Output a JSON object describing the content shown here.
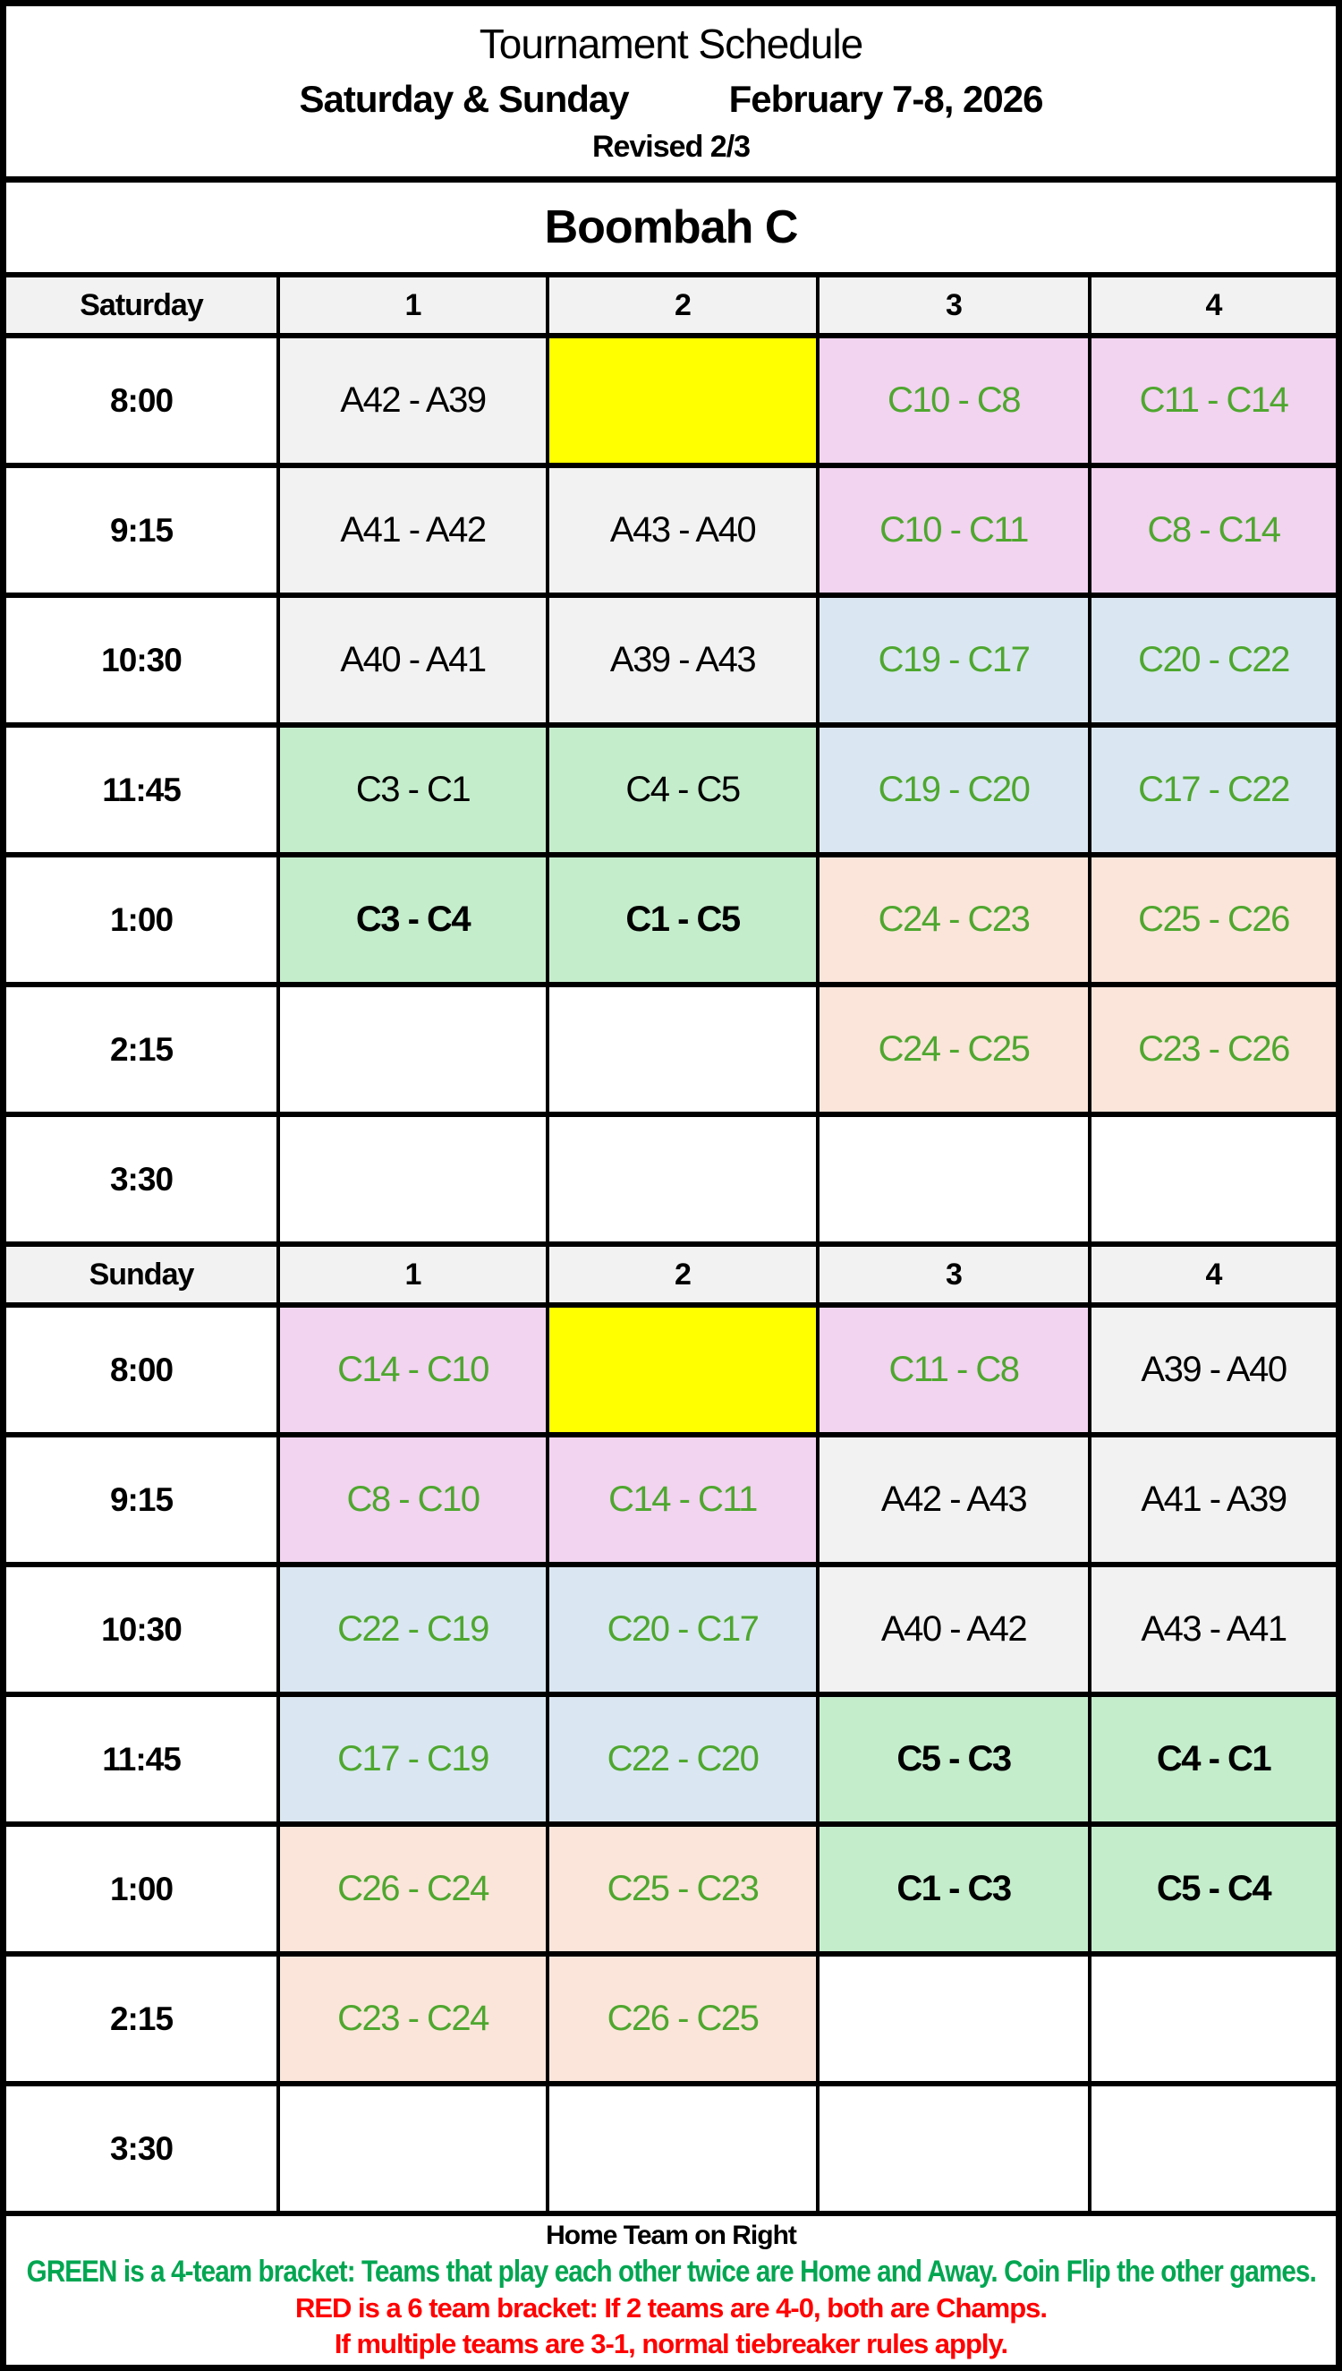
{
  "header": {
    "title": "Tournament Schedule",
    "days": "Saturday & Sunday",
    "dates": "February 7-8, 2026",
    "revised": "Revised 2/3",
    "venue": "Boombah C"
  },
  "columns": [
    "1",
    "2",
    "3",
    "4"
  ],
  "sections": [
    {
      "day": "Saturday",
      "rows": [
        {
          "time": "8:00",
          "cells": [
            {
              "t": "A42 - A39",
              "bg": "gray",
              "fg": "black",
              "bold": false
            },
            {
              "t": "",
              "bg": "yellow",
              "fg": "black",
              "bold": false
            },
            {
              "t": "C10 - C8",
              "bg": "pink",
              "fg": "green",
              "bold": false
            },
            {
              "t": "C11 - C14",
              "bg": "pink",
              "fg": "green",
              "bold": false
            }
          ]
        },
        {
          "time": "9:15",
          "cells": [
            {
              "t": "A41 - A42",
              "bg": "gray",
              "fg": "black",
              "bold": false
            },
            {
              "t": "A43 - A40",
              "bg": "gray",
              "fg": "black",
              "bold": false
            },
            {
              "t": "C10 - C11",
              "bg": "pink",
              "fg": "green",
              "bold": false
            },
            {
              "t": "C8 - C14",
              "bg": "pink",
              "fg": "green",
              "bold": false
            }
          ]
        },
        {
          "time": "10:30",
          "cells": [
            {
              "t": "A40 - A41",
              "bg": "gray",
              "fg": "black",
              "bold": false
            },
            {
              "t": "A39 - A43",
              "bg": "gray",
              "fg": "black",
              "bold": false
            },
            {
              "t": "C19 - C17",
              "bg": "blue",
              "fg": "green",
              "bold": false
            },
            {
              "t": "C20 - C22",
              "bg": "blue",
              "fg": "green",
              "bold": false
            }
          ]
        },
        {
          "time": "11:45",
          "cells": [
            {
              "t": "C3 - C1",
              "bg": "green",
              "fg": "black",
              "bold": false
            },
            {
              "t": "C4 - C5",
              "bg": "green",
              "fg": "black",
              "bold": false
            },
            {
              "t": "C19 - C20",
              "bg": "blue",
              "fg": "green",
              "bold": false
            },
            {
              "t": "C17 - C22",
              "bg": "blue",
              "fg": "green",
              "bold": false
            }
          ]
        },
        {
          "time": "1:00",
          "cells": [
            {
              "t": "C3 - C4",
              "bg": "green",
              "fg": "black",
              "bold": true
            },
            {
              "t": "C1 - C5",
              "bg": "green",
              "fg": "black",
              "bold": true
            },
            {
              "t": "C24 - C23",
              "bg": "peach",
              "fg": "green",
              "bold": false
            },
            {
              "t": "C25 - C26",
              "bg": "peach",
              "fg": "green",
              "bold": false
            }
          ]
        },
        {
          "time": "2:15",
          "cells": [
            {
              "t": "",
              "bg": "white",
              "fg": "black",
              "bold": false
            },
            {
              "t": "",
              "bg": "white",
              "fg": "black",
              "bold": false
            },
            {
              "t": "C24 - C25",
              "bg": "peach",
              "fg": "green",
              "bold": false
            },
            {
              "t": "C23 - C26",
              "bg": "peach",
              "fg": "green",
              "bold": false
            }
          ]
        },
        {
          "time": "3:30",
          "cells": [
            {
              "t": "",
              "bg": "white",
              "fg": "black",
              "bold": false
            },
            {
              "t": "",
              "bg": "white",
              "fg": "black",
              "bold": false
            },
            {
              "t": "",
              "bg": "white",
              "fg": "black",
              "bold": false
            },
            {
              "t": "",
              "bg": "white",
              "fg": "black",
              "bold": false
            }
          ]
        }
      ]
    },
    {
      "day": "Sunday",
      "rows": [
        {
          "time": "8:00",
          "cells": [
            {
              "t": "C14 - C10",
              "bg": "pink",
              "fg": "green",
              "bold": false
            },
            {
              "t": "",
              "bg": "yellow",
              "fg": "black",
              "bold": false
            },
            {
              "t": "C11 - C8",
              "bg": "pink",
              "fg": "green",
              "bold": false
            },
            {
              "t": "A39 - A40",
              "bg": "gray",
              "fg": "black",
              "bold": false
            }
          ]
        },
        {
          "time": "9:15",
          "cells": [
            {
              "t": "C8 - C10",
              "bg": "pink",
              "fg": "green",
              "bold": false
            },
            {
              "t": "C14 - C11",
              "bg": "pink",
              "fg": "green",
              "bold": false
            },
            {
              "t": "A42 - A43",
              "bg": "gray",
              "fg": "black",
              "bold": false
            },
            {
              "t": "A41 - A39",
              "bg": "gray",
              "fg": "black",
              "bold": false
            }
          ]
        },
        {
          "time": "10:30",
          "cells": [
            {
              "t": "C22 - C19",
              "bg": "blue",
              "fg": "green",
              "bold": false
            },
            {
              "t": "C20 - C17",
              "bg": "blue",
              "fg": "green",
              "bold": false
            },
            {
              "t": "A40 - A42",
              "bg": "gray",
              "fg": "black",
              "bold": false
            },
            {
              "t": "A43 - A41",
              "bg": "gray",
              "fg": "black",
              "bold": false
            }
          ]
        },
        {
          "time": "11:45",
          "cells": [
            {
              "t": "C17 - C19",
              "bg": "blue",
              "fg": "green",
              "bold": false
            },
            {
              "t": "C22 - C20",
              "bg": "blue",
              "fg": "green",
              "bold": false
            },
            {
              "t": "C5 - C3",
              "bg": "green",
              "fg": "black",
              "bold": true
            },
            {
              "t": "C4 - C1",
              "bg": "green",
              "fg": "black",
              "bold": true
            }
          ]
        },
        {
          "time": "1:00",
          "cells": [
            {
              "t": "C26 - C24",
              "bg": "peach",
              "fg": "green",
              "bold": false
            },
            {
              "t": "C25 - C23",
              "bg": "peach",
              "fg": "green",
              "bold": false
            },
            {
              "t": "C1 - C3",
              "bg": "green",
              "fg": "black",
              "bold": true
            },
            {
              "t": "C5 - C4",
              "bg": "green",
              "fg": "black",
              "bold": true
            }
          ]
        },
        {
          "time": "2:15",
          "cells": [
            {
              "t": "C23 - C24",
              "bg": "peach",
              "fg": "green",
              "bold": false
            },
            {
              "t": "C26 - C25",
              "bg": "peach",
              "fg": "green",
              "bold": false
            },
            {
              "t": "",
              "bg": "white",
              "fg": "black",
              "bold": false
            },
            {
              "t": "",
              "bg": "white",
              "fg": "black",
              "bold": false
            }
          ]
        },
        {
          "time": "3:30",
          "cells": [
            {
              "t": "",
              "bg": "white",
              "fg": "black",
              "bold": false
            },
            {
              "t": "",
              "bg": "white",
              "fg": "black",
              "bold": false
            },
            {
              "t": "",
              "bg": "white",
              "fg": "black",
              "bold": false
            },
            {
              "t": "",
              "bg": "white",
              "fg": "black",
              "bold": false
            }
          ]
        }
      ]
    }
  ],
  "footer": {
    "home_note": "Home Team on Right",
    "green_note": "GREEN is a 4-team bracket:  Teams that play each other twice are Home and Away.  Coin Flip the other games.",
    "red_note_1": "RED is a 6 team bracket:  If 2 teams are 4-0, both are Champs.",
    "red_note_2": "If multiple teams are 3-1, normal tiebreaker rules apply."
  },
  "colors": {
    "white": "#FFFFFF",
    "gray": "#F2F2F2",
    "header_gray": "#F2F2F2",
    "yellow": "#FFFF00",
    "pink": "#F2D3F0",
    "blue": "#DAE7F2",
    "green": "#C4EDCC",
    "peach": "#FBE5DA",
    "green_text": "#4EA72E",
    "black_text": "#000000",
    "footer_green": "#00A651",
    "footer_red": "#FF0000",
    "border": "#000000"
  }
}
